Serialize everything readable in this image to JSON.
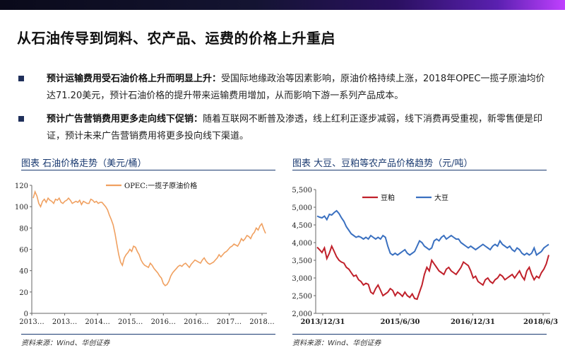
{
  "slide": {
    "title": "从石油传导到饲料、农产品、运费的价格上升重启"
  },
  "bullets": [
    {
      "bold": "预计运输费用受石油价格上升而明显上升：",
      "text": "受国际地缘政治等因素影响，原油价格持续上涨，2018年OPEC一揽子原油均价达71.20美元，预计石油价格的提升带来运输费用增加，从而影响下游一系列产品成本。"
    },
    {
      "bold": "预计广告营销费用更多走向线下促销：",
      "text": "随着互联网不断普及渗透，线上红利正逐步减弱，线下消费再受重视，新零售便是印证，预计未来广告营销费用将更多投向线下渠道。"
    }
  ],
  "left_caption": "图表  石油价格走势（美元/桶）",
  "right_caption": "图表  大豆、豆粕等农产品价格趋势（元/吨）",
  "left_source": "资料来源：Wind、华创证券",
  "right_source": "资料来源：Wind、华创证券",
  "chart_data": [
    {
      "type": "line",
      "title": "",
      "ylim": [
        0,
        120
      ],
      "yticks": [
        "0",
        "20",
        "40",
        "60",
        "80",
        "100",
        "120"
      ],
      "xticks": [
        "2013…",
        "2013…",
        "2014…",
        "2015…",
        "2016…",
        "2016…",
        "2017…",
        "2018…"
      ],
      "series": [
        {
          "name": "OPEC:一揽子原油价格",
          "color": "#f0a060",
          "values": [
            108,
            114,
            110,
            103,
            100,
            105,
            107,
            104,
            108,
            106,
            105,
            103,
            107,
            106,
            108,
            104,
            103,
            105,
            106,
            108,
            106,
            103,
            104,
            105,
            104,
            106,
            102,
            105,
            104,
            103,
            103,
            107,
            106,
            104,
            105,
            103,
            104,
            104,
            102,
            100,
            97,
            92,
            88,
            83,
            75,
            65,
            55,
            48,
            45,
            52,
            55,
            57,
            60,
            58,
            63,
            62,
            58,
            55,
            50,
            47,
            45,
            44,
            43,
            47,
            45,
            42,
            40,
            38,
            35,
            33,
            28,
            26,
            27,
            30,
            35,
            38,
            40,
            42,
            44,
            45,
            44,
            46,
            47,
            45,
            43,
            46,
            48,
            50,
            49,
            48,
            47,
            50,
            52,
            49,
            47,
            46,
            47,
            48,
            50,
            52,
            55,
            53,
            55,
            57,
            58,
            60,
            62,
            63,
            65,
            64,
            63,
            66,
            70,
            68,
            70,
            73,
            72,
            70,
            74,
            76,
            80,
            78,
            82,
            84,
            79,
            75
          ]
        }
      ]
    },
    {
      "type": "line",
      "title": "",
      "ylim": [
        2000,
        5500
      ],
      "yticks": [
        "2,000",
        "2,500",
        "3,000",
        "3,500",
        "4,000",
        "4,500",
        "5,000",
        "5,500"
      ],
      "xticks": [
        "2013/12/31",
        "2015/6/30",
        "2016/12/31",
        "2018/6/30"
      ],
      "series": [
        {
          "name": "豆粕",
          "color": "#c0202a",
          "values": [
            3870,
            3800,
            3720,
            3850,
            3550,
            3700,
            3900,
            3750,
            3600,
            3500,
            3450,
            3420,
            3300,
            3250,
            3150,
            3050,
            3080,
            2950,
            2900,
            2800,
            2850,
            2820,
            2600,
            2550,
            2700,
            2800,
            2650,
            2500,
            2550,
            2600,
            2700,
            2650,
            2500,
            2600,
            2550,
            2480,
            2600,
            2500,
            2450,
            2550,
            2420,
            2400,
            2600,
            2800,
            3100,
            3300,
            3200,
            3500,
            3400,
            3300,
            3200,
            3150,
            3100,
            3250,
            3300,
            3200,
            3150,
            3100,
            3200,
            3300,
            3450,
            3400,
            3350,
            3200,
            3000,
            3050,
            2900,
            2850,
            2800,
            2950,
            3000,
            2900,
            2850,
            2950,
            3000,
            3100,
            3050,
            2950,
            3000,
            3050,
            3100,
            3000,
            3100,
            3200,
            3050,
            2950,
            3200,
            3300,
            3100,
            2950,
            3050,
            3000,
            3150,
            3250,
            3400,
            3650
          ]
        },
        {
          "name": "大豆",
          "color": "#3a70c0",
          "values": [
            4750,
            4720,
            4700,
            4750,
            4650,
            4800,
            4780,
            4850,
            4900,
            4820,
            4700,
            4600,
            4450,
            4350,
            4250,
            4200,
            4150,
            4180,
            4150,
            4100,
            4150,
            4100,
            4200,
            4150,
            4100,
            4150,
            4100,
            4200,
            4150,
            3900,
            3700,
            3650,
            3700,
            3650,
            3700,
            3750,
            3800,
            3700,
            3650,
            3700,
            3750,
            3900,
            4050,
            4000,
            3900,
            3850,
            3800,
            3850,
            4050,
            4100,
            4050,
            4150,
            4200,
            4100,
            4150,
            4200,
            4150,
            4100,
            4100,
            4000,
            3950,
            3900,
            3850,
            3900,
            3850,
            3800,
            3850,
            3900,
            3950,
            3900,
            3850,
            3800,
            3900,
            3950,
            3900,
            4050,
            3950,
            3900,
            3850,
            3900,
            3800,
            3750,
            3850,
            3800,
            3700,
            3650,
            3700,
            3650,
            3700,
            3850,
            3650,
            3700,
            3750,
            3850,
            3900,
            3950
          ]
        }
      ]
    }
  ]
}
